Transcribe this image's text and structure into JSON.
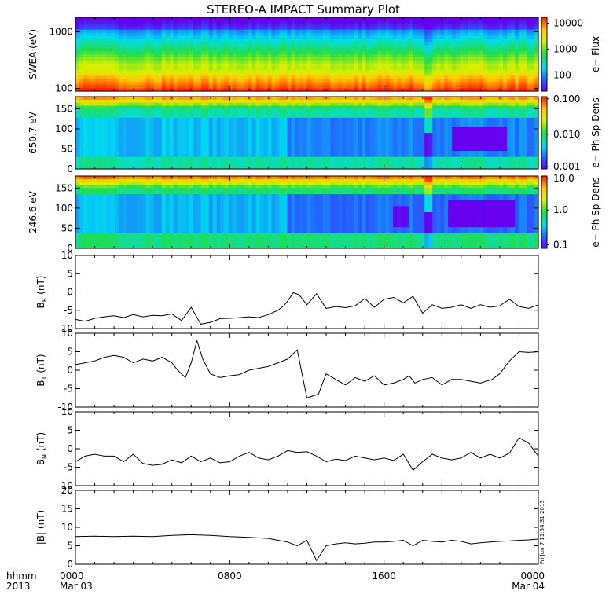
{
  "figure": {
    "title": "STEREO-A IMPACT Summary Plot",
    "footer_left_line1": "hhmm",
    "footer_left_line2": "2013",
    "stamp": "Fri Jun  7 11:54:31 2013",
    "x_ticks": [
      {
        "t": 0,
        "l1": "0000",
        "l2": "Mar 03"
      },
      {
        "t": 8,
        "l1": "0800",
        "l2": ""
      },
      {
        "t": 16,
        "l1": "1600",
        "l2": ""
      },
      {
        "t": 24,
        "l1": "0000",
        "l2": "Mar 04"
      }
    ],
    "x_minor_hours": [
      1,
      2,
      3,
      4,
      5,
      6,
      7,
      9,
      10,
      11,
      12,
      13,
      14,
      15,
      17,
      18,
      19,
      20,
      21,
      22,
      23
    ]
  },
  "chart_data": [
    {
      "type": "heatmap",
      "id": "swea",
      "ylabel": "SWEA (eV)",
      "colorbar_label": "e− Flux",
      "y_scale": "log",
      "ylim": [
        90,
        1800
      ],
      "yticks": [
        100,
        1000
      ],
      "ytick_labels": [
        "100",
        "1000"
      ],
      "cbar_ticks": [
        "10000",
        "1000",
        "100"
      ],
      "cbar_ticks_pos": [
        0.08,
        0.43,
        0.78
      ]
    },
    {
      "type": "heatmap",
      "id": "pad650",
      "ylabel": "650.7 eV",
      "colorbar_label": "e− Ph Sp Dens",
      "ylim": [
        0,
        180
      ],
      "yticks": [
        0,
        50,
        100,
        150
      ],
      "cbar_ticks": [
        "0.100",
        "0.010",
        "0.001"
      ],
      "cbar_ticks_pos": [
        0.03,
        0.52,
        0.97
      ]
    },
    {
      "type": "heatmap",
      "id": "pad246",
      "ylabel": "246.6 eV",
      "colorbar_label": "e− Ph Sp Dens",
      "ylim": [
        0,
        180
      ],
      "yticks": [
        0,
        50,
        100,
        150
      ],
      "cbar_ticks": [
        "10.0",
        "1.0",
        "0.1"
      ],
      "cbar_ticks_pos": [
        0.03,
        0.47,
        0.95
      ]
    },
    {
      "type": "line",
      "id": "br",
      "ylabel": "B",
      "ylabel_sub": "R",
      "ylabel_unit": " (nT)",
      "ylim": [
        -10,
        10
      ],
      "yticks": [
        -10,
        -5,
        0,
        5,
        10
      ],
      "x": [
        0,
        0.5,
        1,
        1.5,
        2,
        2.5,
        3,
        3.5,
        4,
        4.5,
        5,
        5.5,
        6,
        6.5,
        7,
        7.5,
        8,
        8.5,
        9,
        9.5,
        10,
        10.5,
        10.8,
        11,
        11.3,
        11.6,
        12,
        12.5,
        13,
        13.5,
        14,
        14.5,
        15,
        15.5,
        16,
        16.5,
        17,
        17.5,
        18,
        18.5,
        19,
        19.5,
        20,
        20.5,
        21,
        21.5,
        22,
        22.5,
        23,
        23.5,
        24
      ],
      "y": [
        -7.5,
        -8,
        -7.2,
        -6.8,
        -6.5,
        -7,
        -6.2,
        -6.8,
        -6.4,
        -6.5,
        -6,
        -7.8,
        -4.2,
        -8.8,
        -8.3,
        -7.3,
        -7.2,
        -7,
        -6.8,
        -7,
        -6.2,
        -5,
        -3.8,
        -2.5,
        -0.2,
        -0.8,
        -3.5,
        -0.5,
        -4.5,
        -4,
        -4.3,
        -3.8,
        -1.8,
        -4.2,
        -2,
        -1.5,
        -3,
        -1.2,
        -5.8,
        -3.5,
        -4.5,
        -4.2,
        -3.5,
        -4.5,
        -3.5,
        -4.2,
        -3.8,
        -2,
        -4,
        -4.5,
        -3.5
      ]
    },
    {
      "type": "line",
      "id": "bt",
      "ylabel": "B",
      "ylabel_sub": "T",
      "ylabel_unit": " (nT)",
      "ylim": [
        -10,
        10
      ],
      "yticks": [
        -10,
        -5,
        0,
        5,
        10
      ],
      "x": [
        0,
        0.5,
        1,
        1.5,
        2,
        2.5,
        3,
        3.5,
        4,
        4.5,
        5,
        5.3,
        5.7,
        6,
        6.3,
        6.6,
        7,
        7.5,
        8,
        8.5,
        9,
        9.5,
        10,
        10.5,
        11,
        11.3,
        11.5,
        12,
        12.3,
        12.6,
        13,
        13.5,
        14,
        14.5,
        15,
        15.5,
        16,
        16.5,
        17,
        17.3,
        17.6,
        18,
        18.5,
        19,
        19.5,
        20,
        20.5,
        21,
        21.3,
        21.6,
        22,
        22.5,
        23,
        23.5,
        24
      ],
      "y": [
        1.5,
        2,
        2.5,
        3.5,
        4,
        3.5,
        2,
        3,
        2.5,
        3.5,
        2,
        0,
        -2,
        2,
        8,
        3,
        -1,
        -2,
        -1.5,
        -1.2,
        0,
        0.5,
        1,
        2,
        3,
        4.5,
        5.5,
        -7.5,
        -7,
        -6.5,
        -1,
        -2.5,
        -4,
        -2,
        -3,
        -1.5,
        -4,
        -3.5,
        -2.5,
        -1.5,
        -3.5,
        -2.5,
        -2,
        -4,
        -2.5,
        -2.5,
        -3,
        -3.5,
        -3,
        -2.5,
        -1,
        2.5,
        5,
        4.8,
        5
      ]
    },
    {
      "type": "line",
      "id": "bn",
      "ylabel": "B",
      "ylabel_sub": "N",
      "ylabel_unit": " (nT)",
      "ylim": [
        -10,
        10
      ],
      "yticks": [
        -10,
        -5,
        0,
        5,
        10
      ],
      "x": [
        0,
        0.5,
        1,
        1.5,
        2,
        2.5,
        3,
        3.5,
        4,
        4.5,
        5,
        5.5,
        6,
        6.5,
        7,
        7.5,
        8,
        8.5,
        9,
        9.5,
        10,
        10.5,
        11,
        11.5,
        12,
        12.5,
        13,
        13.5,
        14,
        14.5,
        15,
        15.5,
        16,
        16.5,
        17,
        17.5,
        18,
        18.5,
        19,
        19.5,
        20,
        20.5,
        21,
        21.5,
        22,
        22.5,
        23,
        23.5,
        24
      ],
      "y": [
        -3.5,
        -2,
        -1.5,
        -2,
        -2,
        -3.5,
        -1.5,
        -4,
        -4.5,
        -4.2,
        -3,
        -3.8,
        -2,
        -3.5,
        -2.5,
        -3.8,
        -3.5,
        -2,
        -1,
        -2.5,
        -3,
        -2,
        -0.5,
        -1,
        -0.8,
        -2,
        -3.5,
        -2.8,
        -3.2,
        -2,
        -2.5,
        -3,
        -2.5,
        -3.2,
        -1.5,
        -5.8,
        -3.5,
        -1.5,
        -2.5,
        -3,
        -2.5,
        -1,
        -2.5,
        -1.5,
        -2.5,
        -1.2,
        3,
        1.5,
        -2
      ]
    },
    {
      "type": "line",
      "id": "bmag",
      "ylabel": "|B|",
      "ylabel_sub": "",
      "ylabel_unit": " (nT)",
      "ylim": [
        0,
        20
      ],
      "yticks": [
        0,
        5,
        10,
        15,
        20
      ],
      "x": [
        0,
        1,
        2,
        3,
        4,
        5,
        6,
        7,
        8,
        9,
        10,
        10.5,
        11,
        11.5,
        12,
        12.5,
        13,
        13.5,
        14,
        14.5,
        15,
        15.5,
        16,
        16.5,
        17,
        17.5,
        18,
        18.5,
        19,
        19.5,
        20,
        20.5,
        21,
        21.5,
        22,
        22.5,
        23,
        23.5,
        24
      ],
      "y": [
        7.5,
        7.6,
        7.5,
        7.6,
        7.5,
        7.8,
        8,
        7.8,
        7.5,
        7.3,
        7,
        6.5,
        6,
        5,
        6.5,
        1,
        5,
        5.5,
        5.8,
        5.5,
        5.7,
        6,
        6,
        6.2,
        6.5,
        5,
        6.5,
        6.2,
        6,
        6.5,
        6.2,
        5.5,
        5.8,
        6,
        6.2,
        6.3,
        6.5,
        6.6,
        6.8
      ]
    }
  ]
}
